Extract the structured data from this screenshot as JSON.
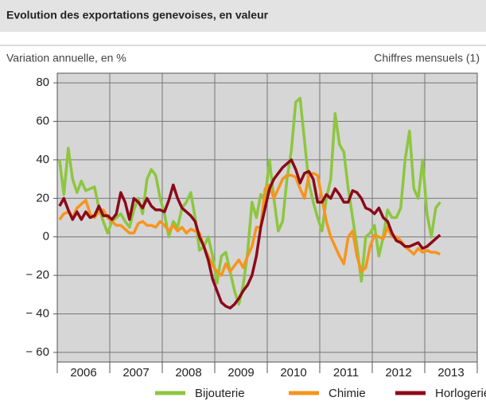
{
  "chart_data": {
    "type": "line",
    "title": "Evolution des exportations genevoises, en valeur",
    "subtitle": "Variation annuelle, en %",
    "note": "Chiffres mensuels (1)",
    "categories": [
      null,
      null,
      null,
      null,
      null,
      null,
      "2006",
      null,
      null,
      null,
      null,
      null,
      null,
      null,
      null,
      null,
      null,
      null,
      "2007",
      null,
      null,
      null,
      null,
      null,
      null,
      null,
      null,
      null,
      null,
      null,
      "2008",
      null,
      null,
      null,
      null,
      null,
      null,
      null,
      null,
      null,
      null,
      null,
      "2009",
      null,
      null,
      null,
      null,
      null,
      null,
      null,
      null,
      null,
      null,
      null,
      "2010",
      null,
      null,
      null,
      null,
      null,
      null,
      null,
      null,
      null,
      null,
      null,
      "2011",
      null,
      null,
      null,
      null,
      null,
      null,
      null,
      null,
      null,
      null,
      null,
      "2012",
      null,
      null,
      null,
      null,
      null,
      null,
      null,
      null,
      null,
      null,
      null,
      "2013",
      null,
      null,
      null,
      null,
      null
    ],
    "ylim": [
      -65,
      85
    ],
    "yticks": [
      {
        "value": -60,
        "label": "− 60"
      },
      {
        "value": -40,
        "label": "− 40"
      },
      {
        "value": -20,
        "label": "− 20"
      },
      0,
      20,
      40,
      60,
      80
    ],
    "grid": true,
    "legend": "bottom",
    "series": [
      {
        "name": "Bijouterie",
        "color": "#8dc63f",
        "values": [
          40,
          22,
          46,
          30,
          23,
          29,
          24,
          25,
          26,
          15,
          8,
          2,
          8,
          10,
          12,
          8,
          5,
          14,
          20,
          12,
          30,
          35,
          32,
          20,
          12,
          0,
          8,
          5,
          15,
          18,
          23,
          10,
          -7,
          -5,
          0,
          -10,
          -24,
          -10,
          -8,
          -18,
          -28,
          -35,
          -25,
          -8,
          18,
          10,
          22,
          20,
          40,
          20,
          3,
          8,
          30,
          45,
          70,
          72,
          50,
          28,
          18,
          10,
          3,
          20,
          30,
          64,
          48,
          44,
          25,
          10,
          -5,
          -23,
          0,
          2,
          6,
          -10,
          0,
          14,
          10,
          10,
          15,
          40,
          55,
          25,
          20,
          40,
          12,
          0,
          15,
          18,
          null,
          null,
          null,
          null,
          null,
          null,
          null,
          null
        ]
      },
      {
        "name": "Chimie",
        "color": "#f7941d",
        "values": [
          9,
          12,
          13,
          10,
          15,
          17,
          19,
          12,
          10,
          13,
          14,
          10,
          8,
          6,
          6,
          4,
          2,
          2,
          7,
          8,
          6,
          6,
          5,
          8,
          6,
          3,
          6,
          3,
          5,
          2,
          4,
          3,
          2,
          -5,
          -10,
          -15,
          -18,
          -20,
          -14,
          -18,
          -15,
          -12,
          -16,
          -10,
          -5,
          5,
          5,
          25,
          27,
          20,
          25,
          30,
          32,
          32,
          31,
          25,
          20,
          32,
          33,
          32,
          20,
          8,
          0,
          -5,
          -10,
          -14,
          0,
          3,
          -10,
          -18,
          -16,
          -5,
          1,
          0,
          -1,
          5,
          0,
          0,
          -2,
          -5,
          -7,
          -9,
          -6,
          -8,
          -7,
          -8,
          -8,
          -9,
          null,
          null,
          null,
          null,
          null,
          null,
          null,
          null
        ]
      },
      {
        "name": "Horlogerie",
        "color": "#8b0a1a",
        "values": [
          16,
          20,
          14,
          9,
          13,
          9,
          13,
          10,
          11,
          16,
          11,
          11,
          9,
          12,
          23,
          18,
          9,
          20,
          18,
          15,
          20,
          16,
          14,
          14,
          13,
          19,
          27,
          20,
          15,
          13,
          11,
          8,
          0,
          -5,
          -12,
          -22,
          -28,
          -34,
          -36,
          -37,
          -35,
          -32,
          -28,
          -25,
          -20,
          -10,
          5,
          15,
          25,
          30,
          33,
          36,
          38,
          40,
          35,
          28,
          33,
          34,
          30,
          18,
          18,
          22,
          20,
          25,
          22,
          18,
          18,
          24,
          23,
          20,
          15,
          14,
          12,
          15,
          10,
          8,
          2,
          -2,
          -3,
          -5,
          -5,
          -4,
          -3,
          -6,
          -5,
          -3,
          -1,
          1,
          null,
          null,
          null,
          null,
          null,
          null,
          null,
          null
        ]
      }
    ]
  }
}
